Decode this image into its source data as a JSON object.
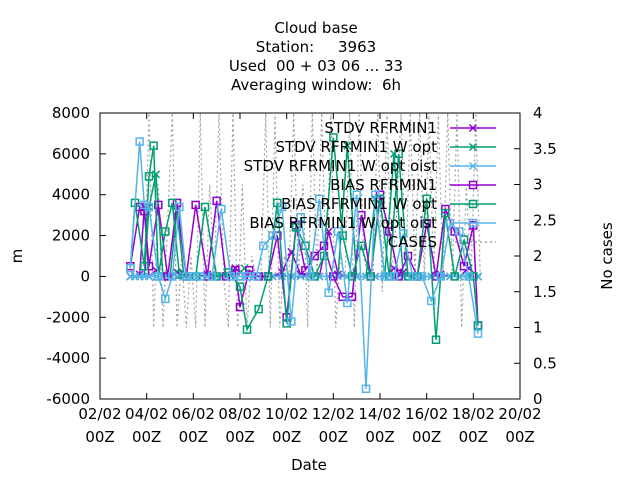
{
  "chart_data": {
    "type": "line",
    "title_lines": [
      "Cloud base",
      "Station:     3963",
      "Used  00 + 03 06 ... 33",
      "Averaging window:  6h"
    ],
    "xlabel": "Date",
    "ylabel": "m",
    "y2label": "No cases",
    "xlim": [
      0,
      18
    ],
    "ylim": [
      -6000,
      8000
    ],
    "y2lim": [
      0,
      4
    ],
    "x_ticks": [
      {
        "v": 0,
        "l1": "02/02",
        "l2": "00Z"
      },
      {
        "v": 2,
        "l1": "04/02",
        "l2": "00Z"
      },
      {
        "v": 4,
        "l1": "06/02",
        "l2": "00Z"
      },
      {
        "v": 6,
        "l1": "08/02",
        "l2": "00Z"
      },
      {
        "v": 8,
        "l1": "10/02",
        "l2": "00Z"
      },
      {
        "v": 10,
        "l1": "12/02",
        "l2": "00Z"
      },
      {
        "v": 12,
        "l1": "14/02",
        "l2": "00Z"
      },
      {
        "v": 14,
        "l1": "16/02",
        "l2": "00Z"
      },
      {
        "v": 16,
        "l1": "18/02",
        "l2": "00Z"
      },
      {
        "v": 18,
        "l1": "20/02",
        "l2": "00Z"
      }
    ],
    "y_ticks": [
      8000,
      6000,
      4000,
      2000,
      0,
      -2000,
      -4000,
      -6000
    ],
    "y2_ticks": [
      4,
      3.5,
      3,
      2.5,
      2,
      1.5,
      1,
      0.5,
      0
    ],
    "legend": [
      {
        "label": "STDV RFRMIN1",
        "color": "#9400d3",
        "marker": "x"
      },
      {
        "label": "STDV RFRMIN1 W opt",
        "color": "#009e73",
        "marker": "x"
      },
      {
        "label": "STDV RFRMIN1 W opt oist",
        "color": "#56b4e9",
        "marker": "x"
      },
      {
        "label": "BIAS RFRMIN1",
        "color": "#9400d3",
        "marker": "s"
      },
      {
        "label": "BIAS RFRMIN1 W opt",
        "color": "#009e73",
        "marker": "s"
      },
      {
        "label": "BIAS RFRMIN1 W opt oist",
        "color": "#56b4e9",
        "marker": "s"
      },
      {
        "label": "CASES",
        "color": "#a0a0a0",
        "marker": "dash"
      }
    ],
    "series": [
      {
        "name": "STDV RFRMIN1",
        "color": "#9400d3",
        "marker": "x",
        "x": [
          1.3,
          1.5,
          1.7,
          1.9,
          2.1,
          2.4,
          2.7,
          3.0,
          3.3,
          3.6,
          3.9,
          4.2,
          4.6,
          5.0,
          5.4,
          5.8,
          6.2,
          6.6,
          7.0,
          7.4,
          7.8,
          8.2,
          8.6,
          9.0,
          9.4,
          9.8,
          10.2,
          10.6,
          11.0,
          11.4,
          11.8,
          12.2,
          12.6,
          13.0,
          13.4,
          13.8,
          14.2,
          14.6,
          15.0,
          15.4,
          15.8,
          16.2
        ],
        "values": [
          0,
          0,
          100,
          3400,
          0,
          300,
          0,
          0,
          200,
          100,
          0,
          0,
          100,
          0,
          0,
          400,
          0,
          0,
          0,
          0,
          200,
          1200,
          100,
          0,
          0,
          2200,
          100,
          0,
          0,
          0,
          0,
          0,
          400,
          200,
          0,
          0,
          0,
          100,
          0,
          0,
          400,
          0
        ]
      },
      {
        "name": "STDV RFRMIN1 W opt",
        "color": "#009e73",
        "marker": "x",
        "x": [
          1.3,
          1.5,
          1.7,
          1.9,
          2.1,
          2.4,
          2.7,
          3.0,
          3.3,
          3.6,
          3.9,
          4.2,
          4.6,
          5.0,
          5.4,
          5.8,
          6.2,
          6.6,
          7.0,
          7.4,
          7.8,
          8.2,
          8.6,
          9.0,
          9.4,
          9.8,
          10.2,
          10.6,
          11.0,
          11.4,
          11.8,
          12.2,
          12.6,
          13.0,
          13.4,
          13.8,
          14.2,
          14.6,
          15.0,
          15.4,
          15.8,
          16.2
        ],
        "values": [
          0,
          0,
          0,
          0,
          3400,
          5000,
          0,
          0,
          3200,
          0,
          0,
          0,
          0,
          0,
          0,
          0,
          400,
          0,
          0,
          0,
          0,
          0,
          0,
          0,
          0,
          0,
          0,
          6400,
          0,
          0,
          3800,
          0,
          6000,
          0,
          0,
          0,
          0,
          0,
          0,
          0,
          0,
          0
        ]
      },
      {
        "name": "STDV RFRMIN1 W opt oist",
        "color": "#56b4e9",
        "marker": "x",
        "x": [
          1.3,
          1.5,
          1.7,
          1.9,
          2.1,
          2.4,
          2.7,
          3.0,
          3.3,
          3.6,
          3.9,
          4.2,
          4.6,
          5.0,
          5.4,
          5.8,
          6.2,
          6.6,
          7.0,
          7.4,
          7.8,
          8.2,
          8.6,
          9.0,
          9.4,
          9.8,
          10.2,
          10.6,
          11.0,
          11.4,
          11.8,
          12.2,
          12.6,
          13.0,
          13.4,
          13.8,
          14.2,
          14.6,
          15.0,
          15.4,
          15.8,
          16.2
        ],
        "values": [
          0,
          0,
          0,
          0,
          0,
          0,
          0,
          100,
          0,
          0,
          0,
          0,
          0,
          0,
          0,
          0,
          0,
          0,
          0,
          0,
          0,
          0,
          0,
          0,
          0,
          0,
          0,
          0,
          0,
          0,
          0,
          0,
          0,
          0,
          0,
          0,
          0,
          0,
          0,
          0,
          0,
          0
        ]
      },
      {
        "name": "BIAS RFRMIN1",
        "color": "#9400d3",
        "marker": "s",
        "x": [
          1.3,
          1.7,
          1.9,
          2.1,
          2.5,
          2.9,
          3.3,
          3.7,
          4.1,
          4.6,
          5.0,
          5.4,
          5.8,
          6.0,
          6.4,
          6.8,
          7.2,
          7.6,
          8.0,
          8.4,
          8.8,
          9.2,
          9.6,
          10.0,
          10.4,
          10.8,
          11.2,
          11.6,
          12.0,
          12.4,
          12.8,
          13.2,
          13.6,
          14.0,
          14.4,
          14.8,
          15.2,
          15.6,
          16.0,
          16.2
        ],
        "values": [
          500,
          3400,
          3200,
          500,
          3500,
          0,
          3600,
          0,
          3500,
          0,
          3700,
          0,
          300,
          -1500,
          300,
          0,
          0,
          2000,
          -2000,
          2500,
          300,
          1000,
          1500,
          0,
          -1000,
          -1000,
          3000,
          0,
          4000,
          2200,
          0,
          1000,
          0,
          2600,
          0,
          3300,
          2200,
          500,
          2500,
          -2400
        ]
      },
      {
        "name": "BIAS RFRMIN1 W opt",
        "color": "#009e73",
        "marker": "s",
        "x": [
          1.3,
          1.5,
          1.9,
          2.1,
          2.3,
          2.5,
          2.8,
          3.1,
          3.4,
          3.7,
          4.1,
          4.5,
          5.0,
          5.5,
          6.0,
          6.3,
          6.8,
          7.2,
          7.6,
          8.0,
          8.4,
          8.8,
          9.2,
          9.6,
          10.0,
          10.4,
          10.8,
          11.2,
          11.6,
          12.0,
          12.4,
          12.8,
          13.2,
          13.6,
          14.0,
          14.4,
          14.8,
          15.2,
          15.6,
          16.0,
          16.2
        ],
        "values": [
          400,
          3600,
          500,
          4900,
          6400,
          0,
          2200,
          3600,
          100,
          0,
          0,
          3400,
          0,
          200,
          -500,
          -2600,
          -1600,
          0,
          3600,
          -2300,
          2400,
          1500,
          0,
          1000,
          6800,
          2000,
          0,
          1500,
          0,
          3800,
          0,
          6000,
          0,
          0,
          3800,
          -3100,
          3100,
          0,
          1800,
          0,
          -2400
        ]
      },
      {
        "name": "BIAS RFRMIN1 W opt oist",
        "color": "#56b4e9",
        "marker": "s",
        "x": [
          1.3,
          1.7,
          1.9,
          2.1,
          2.5,
          2.8,
          3.1,
          3.4,
          3.7,
          4.0,
          4.3,
          4.8,
          5.2,
          5.6,
          6.0,
          6.3,
          6.7,
          7.0,
          7.4,
          7.8,
          8.2,
          8.6,
          9.0,
          9.4,
          9.8,
          10.2,
          10.6,
          11.0,
          11.4,
          11.8,
          12.2,
          12.6,
          13.0,
          13.4,
          13.8,
          14.2,
          14.6,
          15.0,
          15.4,
          15.8,
          16.2
        ],
        "values": [
          400,
          6600,
          3500,
          3400,
          0,
          -1100,
          0,
          3400,
          0,
          0,
          0,
          0,
          3300,
          0,
          0,
          0,
          0,
          1500,
          2000,
          3400,
          -2200,
          2900,
          0,
          3800,
          -800,
          2200,
          -1300,
          4000,
          -5500,
          4000,
          0,
          0,
          2100,
          0,
          0,
          -1200,
          0,
          2600,
          2200,
          0,
          -2800
        ]
      },
      {
        "name": "CASES",
        "color": "#a0a0a0",
        "marker": "dash",
        "x": [
          1.3,
          1.6,
          1.9,
          2.1,
          2.3,
          2.5,
          2.7,
          2.9,
          3.1,
          3.3,
          3.5,
          3.7,
          3.9,
          4.1,
          4.3,
          4.5,
          4.7,
          4.9,
          5.1,
          5.3,
          5.5,
          5.7,
          5.9,
          6.1,
          6.3,
          6.5,
          6.7,
          6.9,
          7.1,
          7.3,
          7.5,
          7.7,
          7.9,
          8.1,
          8.3,
          8.5,
          8.7,
          8.9,
          9.1,
          9.3,
          9.5,
          9.7,
          9.9,
          10.1,
          10.3,
          10.5,
          10.7,
          10.9,
          11.1,
          11.3,
          11.5,
          11.7,
          11.9,
          12.1,
          12.3,
          12.5,
          12.7,
          12.9,
          13.1,
          13.3,
          13.5,
          13.7,
          13.9,
          14.1,
          14.3,
          14.5,
          14.7,
          14.9,
          15.1,
          15.3,
          15.5,
          15.7,
          15.9,
          16.1,
          16.3
        ],
        "values": [
          1.7,
          1.7,
          1.7,
          4,
          1,
          3,
          1,
          2.5,
          4,
          1,
          2,
          1,
          2,
          1,
          4,
          1,
          3,
          1.7,
          4,
          1.7,
          1,
          4,
          1,
          3,
          1,
          2,
          1.7,
          1.7,
          4,
          1,
          4,
          1,
          2,
          1.7,
          4,
          1.7,
          3,
          1,
          4,
          1.7,
          4,
          1.7,
          4,
          1,
          2,
          1.7,
          4,
          1,
          4,
          2,
          1.7,
          1.7,
          4,
          1.5,
          4,
          1.7,
          2.5,
          4,
          1.7,
          4,
          1.7,
          4,
          1.7,
          4,
          1.7,
          4,
          1.7,
          4,
          1.7,
          4,
          1,
          3,
          1.7,
          4,
          1.7
        ]
      }
    ]
  }
}
